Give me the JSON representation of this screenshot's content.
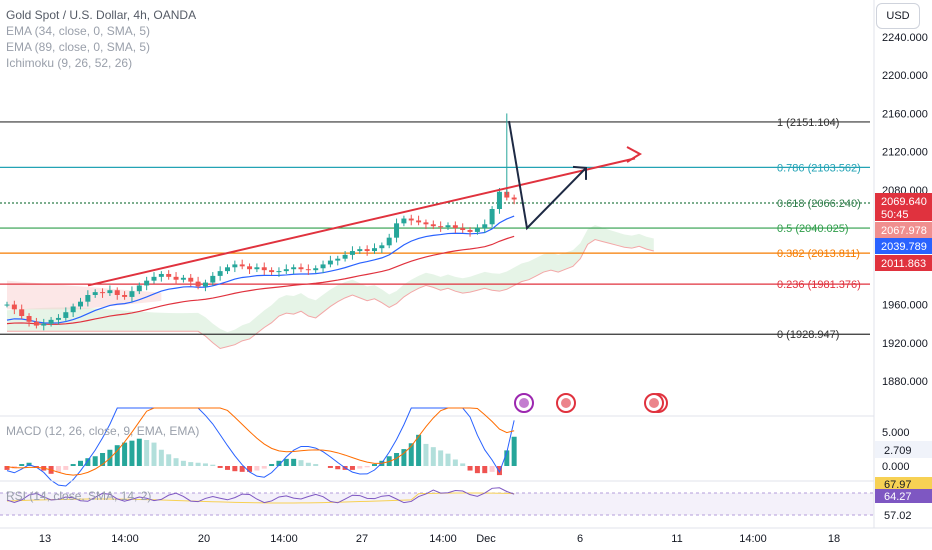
{
  "header": {
    "title": "Gold Spot / U.S. Dollar, 4h, OANDA",
    "indicators": [
      "EMA (34, close, 0, SMA, 5)",
      "EMA (89, close, 0, SMA, 5)",
      "Ichimoku (9, 26, 52, 26)"
    ],
    "currency_button": "USD"
  },
  "price_axis": {
    "ticks": [
      "2240.000",
      "2200.000",
      "2160.000",
      "2120.000",
      "2080.000",
      "1960.000",
      "1920.000",
      "1880.000"
    ],
    "tags": [
      {
        "text": "2069.640",
        "sub": "50:45",
        "color": "#e0323e"
      },
      {
        "text": "2067.978",
        "color": "#f08f8f"
      },
      {
        "text": "2039.789",
        "color": "#2962ff"
      },
      {
        "text": "2011.863",
        "color": "#e0323e"
      }
    ]
  },
  "fibonacci": [
    {
      "label": "1 (2151.104)",
      "color": "#333333",
      "dashed": false
    },
    {
      "label": "0.786 (2103.562)",
      "color": "#23a3b5",
      "dashed": false
    },
    {
      "label": "0.618 (2066.240)",
      "color": "#2f7d4a",
      "dashed": true
    },
    {
      "label": "0.5 (2040.025)",
      "color": "#2e9d4a",
      "dashed": false
    },
    {
      "label": "0.382 (2013.811)",
      "color": "#f57c00",
      "dashed": false
    },
    {
      "label": "0.236 (1981.376)",
      "color": "#e0323e",
      "dashed": false
    },
    {
      "label": "0 (1928.947)",
      "color": "#333333",
      "dashed": false
    }
  ],
  "macd": {
    "label": "MACD (12, 26, close, 9, EMA, EMA)",
    "ticks": [
      "5.000",
      "0.000"
    ],
    "tag": "2.709"
  },
  "rsi": {
    "label": "RSI (14, close, SMA, 14, 2)",
    "tags": [
      {
        "text": "67.97",
        "color": "#f7d154",
        "fg": "#131722"
      },
      {
        "text": "64.27",
        "color": "#7e57c2",
        "fg": "#ffffff"
      }
    ],
    "plain_tick": "57.02"
  },
  "time_axis": [
    "13",
    "14:00",
    "20",
    "14:00",
    "27",
    "14:00",
    "Dec",
    "6",
    "11",
    "14:00",
    "18"
  ],
  "colors": {
    "up": "#26a69a",
    "down": "#ef5350",
    "ema34": "#2962ff",
    "ema89": "#e0323e",
    "trend": "#e0323e"
  },
  "chart_data": {
    "type": "candlestick",
    "title": "Gold Spot / U.S. Dollar, 4h, OANDA",
    "ylim": [
      1860,
      2250
    ],
    "close_start": 1960,
    "close_path": [
      1960,
      1955,
      1948,
      1942,
      1938,
      1940,
      1944,
      1946,
      1952,
      1958,
      1963,
      1970,
      1973,
      1972,
      1975,
      1970,
      1968,
      1974,
      1980,
      1985,
      1989,
      1992,
      1989,
      1986,
      1988,
      1984,
      1979,
      1983,
      1990,
      1995,
      1999,
      2002,
      2000,
      1997,
      1999,
      1996,
      1994,
      1995,
      1997,
      1999,
      1997,
      1996,
      1998,
      2002,
      2006,
      2008,
      2012,
      2016,
      2018,
      2016,
      2019,
      2022,
      2030,
      2045,
      2050,
      2048,
      2046,
      2044,
      2042,
      2041,
      2043,
      2040,
      2038,
      2036,
      2040,
      2044,
      2060,
      2078,
      2072,
      2070
    ],
    "projection": [
      2152,
      2040,
      2103
    ],
    "trendline": [
      1980,
      2113
    ],
    "macd_hist": [
      -0.6,
      -0.4,
      0.3,
      0.5,
      -0.3,
      -0.7,
      -1.2,
      -1.0,
      -0.6,
      0.3,
      0.8,
      1.2,
      1.5,
      2.0,
      2.5,
      3.2,
      3.6,
      3.9,
      4.2,
      4.0,
      3.6,
      2.5,
      1.8,
      1.2,
      0.8,
      0.6,
      0.5,
      0.4,
      0.2,
      -0.3,
      -0.6,
      -0.8,
      -0.9,
      -0.9,
      -0.7,
      -0.4,
      0.3,
      0.8,
      1.1,
      1.1,
      0.9,
      0.5,
      0.3,
      0.0,
      -0.3,
      -0.5,
      -0.6,
      -0.6,
      -0.4,
      -0.2,
      0.3,
      0.8,
      1.5,
      2.0,
      2.6,
      3.5,
      4.8,
      3.4,
      2.9,
      2.4,
      1.9,
      1.0,
      0.4,
      -0.7,
      -1.1,
      -1.1,
      -0.9,
      -1.4,
      2.4,
      4.5
    ]
  }
}
